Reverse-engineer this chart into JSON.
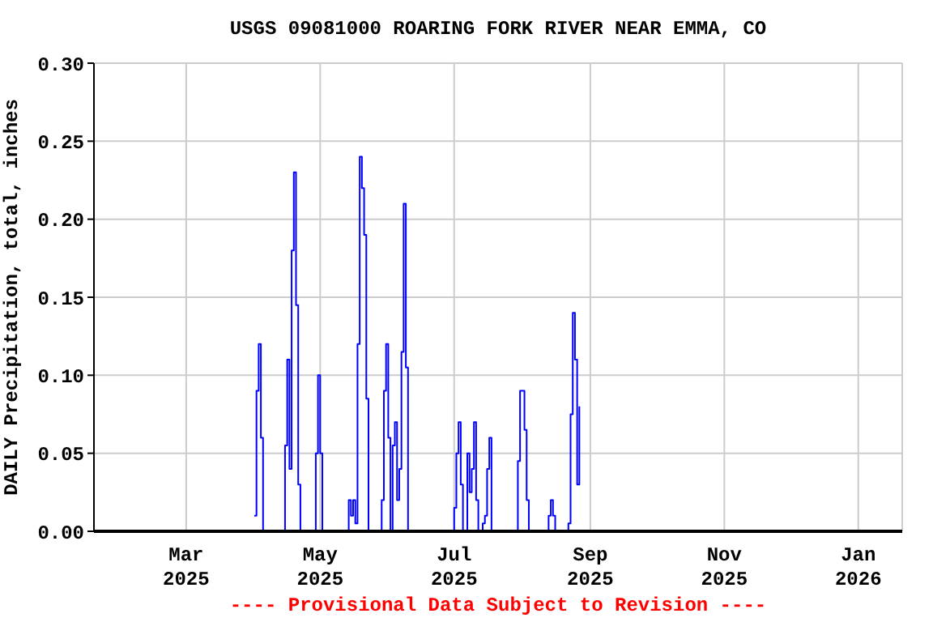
{
  "chart_data": {
    "type": "step",
    "title": "USGS 09081000 ROARING FORK RIVER NEAR EMMA, CO",
    "ylabel": "DAILY Precipitation, total, inches",
    "annotations": [
      "---- Provisional Data Subject to Revision ----"
    ],
    "x": [
      "2025-04-01",
      "2025-04-02",
      "2025-04-03",
      "2025-04-04",
      "2025-04-05",
      "2025-04-14",
      "2025-04-15",
      "2025-04-16",
      "2025-04-17",
      "2025-04-18",
      "2025-04-19",
      "2025-04-20",
      "2025-04-21",
      "2025-04-22",
      "2025-04-28",
      "2025-04-29",
      "2025-04-30",
      "2025-05-01",
      "2025-05-02",
      "2025-05-13",
      "2025-05-14",
      "2025-05-15",
      "2025-05-16",
      "2025-05-17",
      "2025-05-18",
      "2025-05-19",
      "2025-05-20",
      "2025-05-21",
      "2025-05-22",
      "2025-05-23",
      "2025-05-28",
      "2025-05-29",
      "2025-05-30",
      "2025-05-31",
      "2025-06-01",
      "2025-06-02",
      "2025-06-03",
      "2025-06-04",
      "2025-06-05",
      "2025-06-06",
      "2025-06-07",
      "2025-06-08",
      "2025-06-09",
      "2025-06-10",
      "2025-06-30",
      "2025-07-01",
      "2025-07-02",
      "2025-07-03",
      "2025-07-04",
      "2025-07-05",
      "2025-07-06",
      "2025-07-07",
      "2025-07-08",
      "2025-07-09",
      "2025-07-10",
      "2025-07-11",
      "2025-07-12",
      "2025-07-13",
      "2025-07-14",
      "2025-07-15",
      "2025-07-16",
      "2025-07-17",
      "2025-07-18",
      "2025-07-29",
      "2025-07-30",
      "2025-07-31",
      "2025-08-01",
      "2025-08-02",
      "2025-08-03",
      "2025-08-04",
      "2025-08-12",
      "2025-08-13",
      "2025-08-14",
      "2025-08-15",
      "2025-08-16",
      "2025-08-21",
      "2025-08-22",
      "2025-08-23",
      "2025-08-24",
      "2025-08-25",
      "2025-08-26",
      "2025-08-27"
    ],
    "series": [
      {
        "color": "#0000ff",
        "values": [
          0.01,
          0.09,
          0.12,
          0.06,
          0,
          0,
          0.055,
          0.11,
          0.04,
          0.18,
          0.23,
          0.145,
          0.03,
          0,
          0,
          0.05,
          0.1,
          0.05,
          0,
          0,
          0.02,
          0.01,
          0.02,
          0.005,
          0.12,
          0.24,
          0.22,
          0.19,
          0.085,
          0,
          0,
          0.02,
          0.09,
          0.12,
          0.06,
          0,
          0.055,
          0.07,
          0.02,
          0.04,
          0.115,
          0.21,
          0.105,
          0,
          0,
          0.015,
          0.05,
          0.07,
          0.03,
          0,
          0,
          0.05,
          0.025,
          0.04,
          0.07,
          0.02,
          0,
          0,
          0.005,
          0.01,
          0.04,
          0.06,
          0,
          0,
          0.045,
          0.09,
          0.09,
          0.065,
          0.02,
          0,
          0,
          0.01,
          0.02,
          0.01,
          0,
          0,
          0.005,
          0.075,
          0.14,
          0.11,
          0.03,
          0.08
        ]
      }
    ],
    "xlim": [
      "2025-01-18",
      "2026-01-21"
    ],
    "xticks": [
      {
        "value": "2025-03-01",
        "label": "Mar\n2025"
      },
      {
        "value": "2025-05-01",
        "label": "May\n2025"
      },
      {
        "value": "2025-07-01",
        "label": "Jul\n2025"
      },
      {
        "value": "2025-09-01",
        "label": "Sep\n2025"
      },
      {
        "value": "2025-11-01",
        "label": "Nov\n2025"
      },
      {
        "value": "2026-01-01",
        "label": "Jan\n2026"
      }
    ],
    "ylim": [
      0,
      0.3
    ],
    "yticks": [
      {
        "value": 0,
        "label": "0.00"
      },
      {
        "value": 0.05,
        "label": "0.05"
      },
      {
        "value": 0.1,
        "label": "0.10"
      },
      {
        "value": 0.15,
        "label": "0.15"
      },
      {
        "value": 0.2,
        "label": "0.20"
      },
      {
        "value": 0.25,
        "label": "0.25"
      },
      {
        "value": 0.3,
        "label": "0.30"
      }
    ],
    "grid": true,
    "marker": "none",
    "line_style": "solid"
  }
}
